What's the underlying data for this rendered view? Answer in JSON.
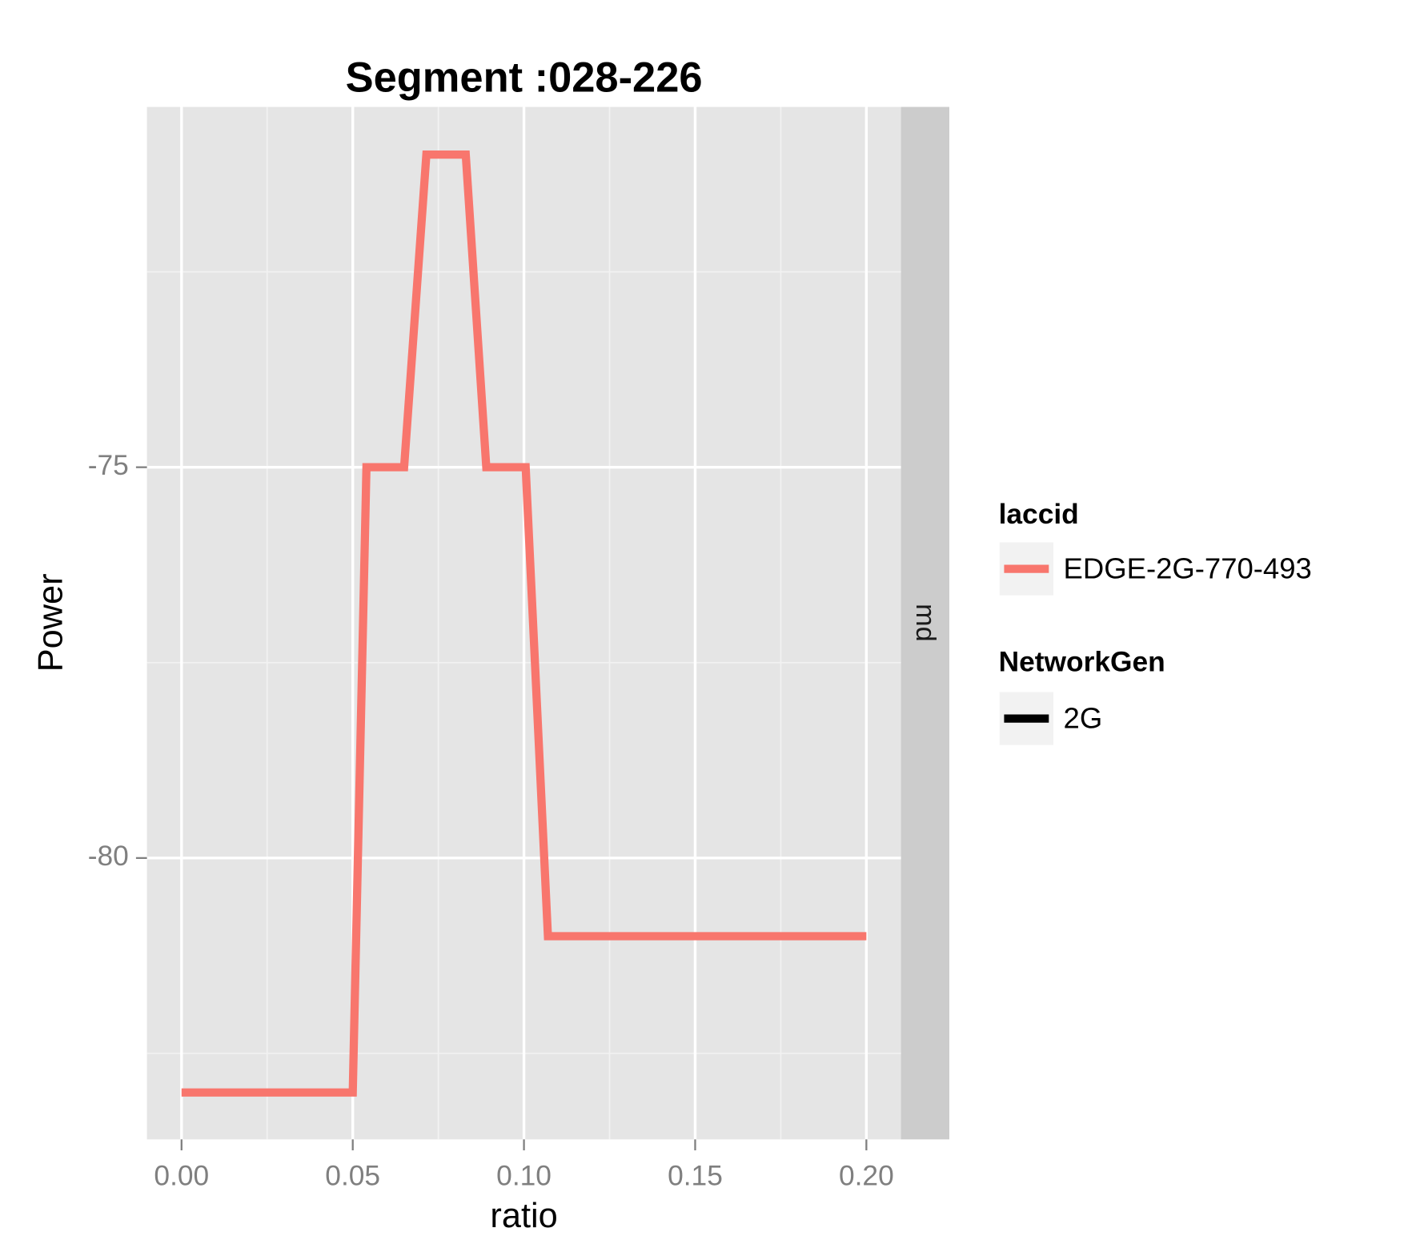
{
  "chart_data": {
    "type": "line",
    "title": "Segment :028-226",
    "x_label": "ratio",
    "y_label": "Power",
    "facet_label": "md",
    "color_legend_title": "laccid",
    "series": [
      {
        "name": "EDGE-2G-770-493",
        "color": "#F8766D",
        "x": [
          0,
          0.05,
          0.054,
          0.065,
          0.0715,
          0.083,
          0.089,
          0.1005,
          0.107,
          0.2
        ],
        "values": [
          -83,
          -83,
          -75,
          -75,
          -71,
          -71,
          -75,
          -75,
          -81,
          -81
        ]
      }
    ],
    "linetype_legend": {
      "title": "NetworkGen",
      "items": [
        "2G"
      ],
      "color": "#000000"
    },
    "xlim": [
      -0.0101,
      0.2101
    ],
    "xticks": [
      {
        "value": 0,
        "label": "0.00"
      },
      0.05,
      {
        "value": 0.1,
        "label": "0.10"
      },
      0.15,
      {
        "value": 0.2,
        "label": "0.20"
      }
    ],
    "ylim": [
      -83.6,
      -70.39
    ],
    "yticks": [
      -80,
      -75
    ],
    "grid": true,
    "minor_grid": true
  }
}
